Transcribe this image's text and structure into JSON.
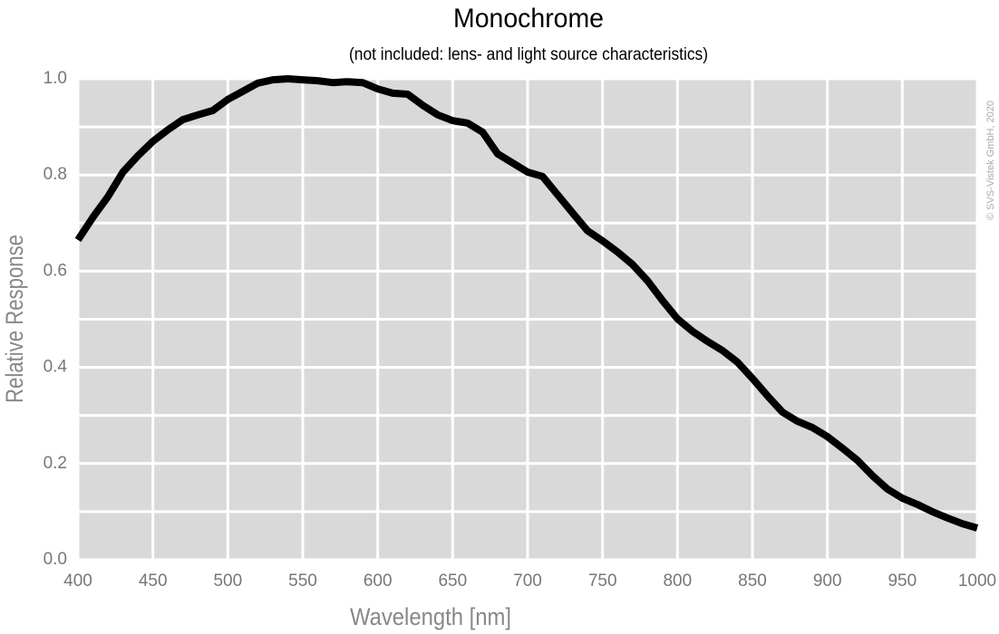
{
  "chart_data": {
    "type": "line",
    "title": "Monochrome",
    "subtitle": "(not included: lens- and light source characteristics)",
    "x_label": "Wavelength [nm]",
    "y_label": "Relative Response",
    "copyright": "© SVS-Vistek GmbH, 2020",
    "x": [
      400,
      410,
      420,
      430,
      440,
      450,
      460,
      470,
      480,
      490,
      500,
      510,
      520,
      530,
      540,
      550,
      560,
      570,
      580,
      590,
      600,
      610,
      620,
      630,
      640,
      650,
      660,
      670,
      680,
      690,
      700,
      710,
      720,
      730,
      740,
      750,
      760,
      770,
      780,
      790,
      800,
      810,
      820,
      830,
      840,
      850,
      860,
      870,
      880,
      890,
      900,
      910,
      920,
      930,
      940,
      950,
      960,
      970,
      980,
      990,
      1000
    ],
    "values": [
      0.665,
      0.712,
      0.755,
      0.806,
      0.84,
      0.87,
      0.894,
      0.915,
      0.925,
      0.934,
      0.957,
      0.974,
      0.991,
      0.998,
      1.0,
      0.998,
      0.996,
      0.992,
      0.994,
      0.992,
      0.979,
      0.97,
      0.968,
      0.945,
      0.925,
      0.913,
      0.908,
      0.889,
      0.844,
      0.825,
      0.806,
      0.797,
      0.759,
      0.721,
      0.684,
      0.663,
      0.64,
      0.614,
      0.58,
      0.539,
      0.501,
      0.475,
      0.454,
      0.435,
      0.411,
      0.377,
      0.341,
      0.307,
      0.288,
      0.275,
      0.256,
      0.232,
      0.207,
      0.175,
      0.147,
      0.128,
      0.115,
      0.1,
      0.087,
      0.075,
      0.066
    ],
    "color": "#000000",
    "xlim": [
      400,
      1000
    ],
    "ylim": [
      0,
      1
    ],
    "xticks": [
      400,
      450,
      500,
      550,
      600,
      650,
      700,
      750,
      800,
      850,
      900,
      950,
      1000
    ],
    "yticks": [
      {
        "value": 0,
        "label": "0.0"
      },
      0.2,
      0.4,
      0.6,
      0.8,
      {
        "value": 1,
        "label": "1.0"
      }
    ],
    "y_minor_grid": [
      0.1,
      0.3,
      0.5,
      0.7,
      0.9
    ],
    "grid": true
  }
}
